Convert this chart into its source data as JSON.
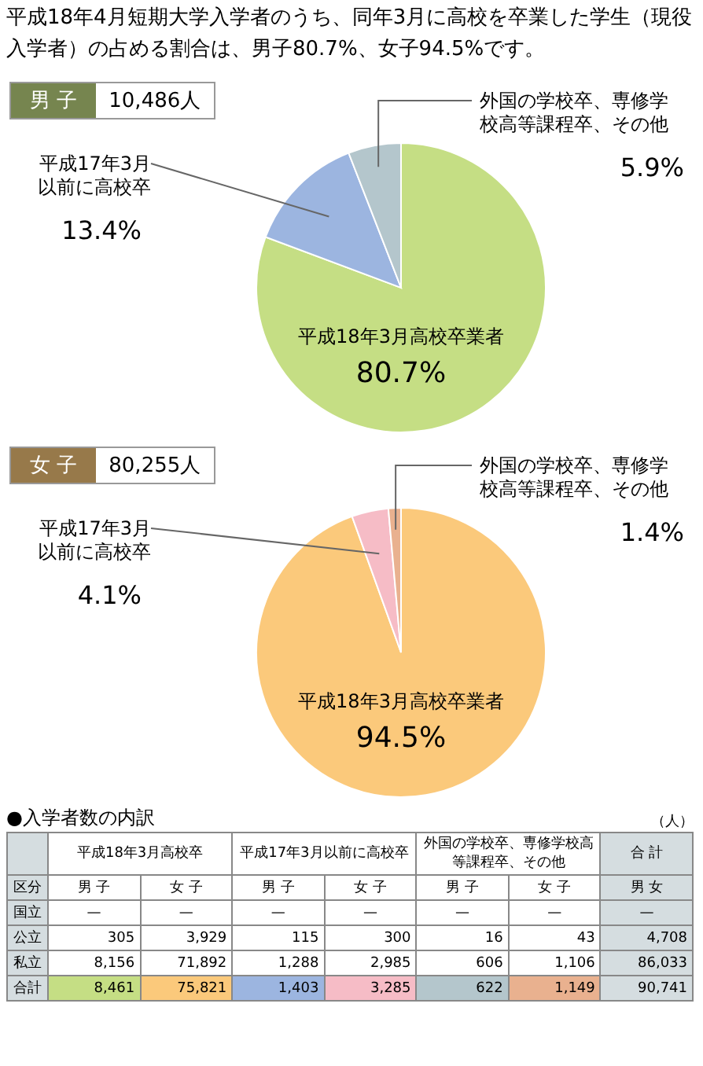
{
  "chart_data": [
    {
      "type": "pie",
      "title": "平成18年4月短期大学入学者のうち、同年3月に高校を卒業した学生（現役入学者）の占める割合は、男子80.7%、女子94.5%です。",
      "legend_title": "男 子",
      "subtitle": "10,486人",
      "categories": [
        "平成18年3月高校卒業者",
        "平成17年3月以前に高校卒",
        "外国の学校卒、専修学校高等課程卒、その他"
      ],
      "values": [
        80.7,
        13.4,
        5.9
      ],
      "value_labels": [
        "80.7%",
        "13.4%",
        "5.9%"
      ],
      "colors": [
        "#c5de84",
        "#9cb5e0",
        "#b4c6cc"
      ],
      "legend": false
    },
    {
      "type": "pie",
      "legend_title": "女 子",
      "subtitle": "80,255人",
      "categories": [
        "平成18年3月高校卒業者",
        "平成17年3月以前に高校卒",
        "外国の学校卒、専修学校高等課程卒、その他"
      ],
      "values": [
        94.5,
        4.1,
        1.4
      ],
      "value_labels": [
        "94.5%",
        "4.1%",
        "1.4%"
      ],
      "colors": [
        "#fbc97b",
        "#f6bcc6",
        "#e9b18f"
      ],
      "legend": false
    },
    {
      "type": "other",
      "title": "●入学者数の内訳",
      "subtitle": "（人）",
      "ylabel": "区分",
      "annotations": [
        "平成18年3月高校卒",
        "平成17年3月以前に高校卒",
        "外国の学校卒、専修学校高等課程卒、その他",
        "合 計"
      ],
      "categories": [
        "男 子",
        "女 子",
        "男 子",
        "女 子",
        "男 子",
        "女 子",
        "男 女"
      ],
      "y_categories": [
        "国立",
        "公立",
        "私立",
        "合計"
      ],
      "cell_labels": [
        [
          "—",
          "—",
          "—",
          "—",
          "—",
          "—",
          "—"
        ],
        [
          "305",
          "3,929",
          "115",
          "300",
          "16",
          "43",
          "4,708"
        ],
        [
          "8,156",
          "71,892",
          "1,288",
          "2,985",
          "606",
          "1,106",
          "86,033"
        ],
        [
          "8,461",
          "75,821",
          "1,403",
          "3,285",
          "622",
          "1,149",
          "90,741"
        ]
      ]
    }
  ]
}
